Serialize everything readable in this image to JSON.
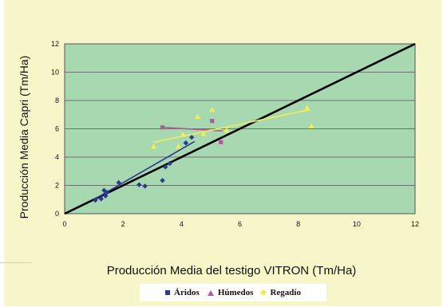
{
  "chart_data": {
    "type": "scatter",
    "xlabel": "Producción Media del testigo VITRON (Tm/Ha)",
    "ylabel": "Producción Media Capri (Tm/Ha)",
    "xlim": [
      0,
      12
    ],
    "ylim": [
      0,
      12
    ],
    "xticks": [
      "0",
      "2",
      "4",
      "6",
      "8",
      "10",
      "12"
    ],
    "yticks": [
      "0",
      "2",
      "4",
      "6",
      "8",
      "10",
      "12"
    ],
    "grid": "horizontal",
    "plot_background": "#a8d8b0",
    "legend_position": "bottom",
    "reference_line": {
      "x": [
        0,
        12
      ],
      "y": [
        0,
        12
      ],
      "color": "#000000"
    },
    "series": [
      {
        "name": "Áridos",
        "marker": "diamond",
        "legend_marker": "square",
        "color": "#2b3a8f",
        "points": [
          [
            1.05,
            0.95
          ],
          [
            1.25,
            1.05
          ],
          [
            1.35,
            1.65
          ],
          [
            1.4,
            1.25
          ],
          [
            1.45,
            1.5
          ],
          [
            1.85,
            2.2
          ],
          [
            2.55,
            2.05
          ],
          [
            2.75,
            1.95
          ],
          [
            3.35,
            2.35
          ],
          [
            3.45,
            3.3
          ],
          [
            3.6,
            3.55
          ],
          [
            4.15,
            5.0
          ],
          [
            4.35,
            5.4
          ]
        ],
        "trend": [
          [
            1.0,
            1.0
          ],
          [
            4.45,
            5.1
          ]
        ]
      },
      {
        "name": "Húmedos",
        "marker": "square",
        "legend_marker": "triangle",
        "color": "#b05a9c",
        "points": [
          [
            3.35,
            6.1
          ],
          [
            5.05,
            6.55
          ],
          [
            5.35,
            5.05
          ]
        ],
        "trend": [
          [
            3.35,
            6.1
          ],
          [
            5.4,
            5.85
          ]
        ]
      },
      {
        "name": "Regadío",
        "marker": "triangle",
        "legend_marker": "diamond",
        "color": "#f2ec5a",
        "points": [
          [
            3.05,
            4.75
          ],
          [
            3.9,
            4.75
          ],
          [
            4.05,
            5.6
          ],
          [
            4.55,
            6.85
          ],
          [
            4.75,
            5.65
          ],
          [
            5.05,
            7.35
          ],
          [
            5.55,
            5.9
          ],
          [
            8.3,
            7.5
          ],
          [
            8.45,
            6.2
          ]
        ],
        "trend": [
          [
            3.05,
            5.05
          ],
          [
            8.4,
            7.35
          ]
        ]
      }
    ]
  }
}
